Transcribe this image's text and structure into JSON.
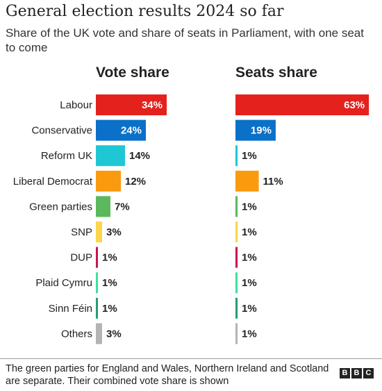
{
  "header": {
    "title": "General election results 2024 so far",
    "subtitle": "Share of the UK vote and share of seats in Parliament, with one seat to come"
  },
  "footer": {
    "note": "The green parties for England and Wales, Northern Ireland and Scotland are separate. Their combined vote share is shown",
    "logo_letters": [
      "B",
      "B",
      "C"
    ]
  },
  "chart_data": {
    "type": "bar",
    "orientation": "horizontal",
    "categories": [
      "Labour",
      "Conservative",
      "Reform UK",
      "Liberal Democrat",
      "Green parties",
      "SNP",
      "DUP",
      "Plaid Cymru",
      "Sinn Féin",
      "Others"
    ],
    "colors": [
      "#e4211c",
      "#0a70c8",
      "#1fc7d4",
      "#fa9a0e",
      "#5cb85c",
      "#fbd54a",
      "#c8144d",
      "#3ee0a0",
      "#2a9a78",
      "#b4b4b4"
    ],
    "series": [
      {
        "name": "Vote share",
        "values": [
          34,
          24,
          14,
          12,
          7,
          3,
          1,
          1,
          1,
          3
        ],
        "labels": [
          "34%",
          "24%",
          "14%",
          "12%",
          "7%",
          "3%",
          "1%",
          "1%",
          "1%",
          "3%"
        ]
      },
      {
        "name": "Seats share",
        "values": [
          63,
          19,
          1,
          11,
          1,
          1,
          1,
          1,
          1,
          1
        ],
        "labels": [
          "63%",
          "19%",
          "1%",
          "11%",
          "1%",
          "1%",
          "1%",
          "1%",
          "1%",
          "1%"
        ]
      }
    ],
    "grid": false,
    "legend": "none"
  }
}
